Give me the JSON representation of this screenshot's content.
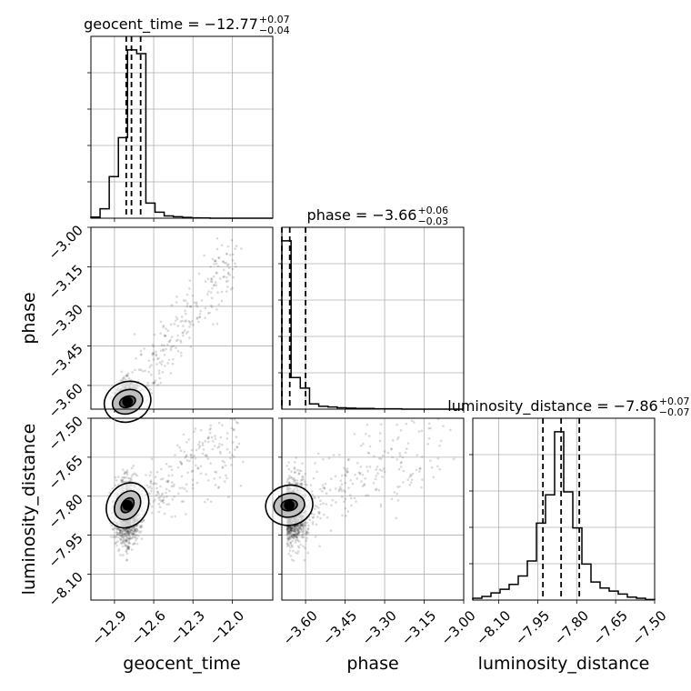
{
  "chart_data": {
    "type": "corner",
    "parameters": [
      "geocent_time",
      "phase",
      "luminosity_distance"
    ],
    "titles": [
      {
        "text": "geocent_time = −12.77",
        "sup": "+0.07",
        "sub": "−0.04"
      },
      {
        "text": "phase = −3.66",
        "sup": "+0.06",
        "sub": "−0.03"
      },
      {
        "text": "luminosity_distance = −7.86",
        "sup": "+0.07",
        "sub": "−0.07"
      }
    ],
    "axis_labels": [
      "geocent_time",
      "phase",
      "luminosity_distance"
    ],
    "ranges": [
      [
        -13.08,
        -11.69
      ],
      [
        -3.69,
        -3.0
      ],
      [
        -8.2,
        -7.5
      ]
    ],
    "ticks": [
      [
        -12.9,
        -12.6,
        -12.3,
        -12.0
      ],
      [
        -3.6,
        -3.45,
        -3.3,
        -3.15,
        -3.0
      ],
      [
        -8.1,
        -7.95,
        -7.8,
        -7.65,
        -7.5
      ]
    ],
    "tick_labels": [
      [
        "−12.9",
        "−12.6",
        "−12.3",
        "−12.0"
      ],
      [
        "−3.60",
        "−3.45",
        "−3.30",
        "−3.15",
        "−3.00"
      ],
      [
        "−8.10",
        "−7.95",
        "−7.80",
        "−7.65",
        "−7.50"
      ]
    ],
    "quantile_lines": [
      [
        -12.81,
        -12.77,
        -12.7
      ],
      [
        -3.69,
        -3.66,
        -3.6
      ],
      [
        -7.93,
        -7.86,
        -7.79
      ]
    ],
    "histograms": [
      {
        "bin_edges": [
          -13.08,
          -13.01,
          -12.94,
          -12.87,
          -12.8,
          -12.73,
          -12.66,
          -12.59,
          -12.52,
          -12.45,
          -12.38,
          -12.31,
          -12.24,
          -12.17,
          -12.1,
          -12.03,
          -11.96,
          -11.89,
          -11.82,
          -11.75,
          -11.69
        ],
        "counts": [
          0.3,
          2.5,
          11.0,
          21.3,
          44.5,
          43.5,
          4.0,
          1.6,
          0.6,
          0.4,
          0.2,
          0.1,
          0.05,
          0,
          0,
          0,
          0,
          0,
          0,
          0
        ]
      },
      {
        "bin_edges": [
          -3.69,
          -3.655,
          -3.62,
          -3.585,
          -3.55,
          -3.515,
          -3.48,
          -3.445,
          -3.41,
          -3.375,
          -3.34,
          -3.305,
          -3.27,
          -3.235,
          -3.2,
          -3.165,
          -3.13,
          -3.095,
          -3.06,
          -3.025,
          -3.0
        ],
        "counts": [
          4.8,
          0.9,
          0.6,
          0.15,
          0.08,
          0.06,
          0.04,
          0.03,
          0.02,
          0.02,
          0.01,
          0.01,
          0.01,
          0,
          0,
          0,
          0,
          0,
          0,
          0
        ]
      },
      {
        "bin_edges": [
          -8.2,
          -8.165,
          -8.13,
          -8.095,
          -8.06,
          -8.025,
          -7.99,
          -7.955,
          -7.92,
          -7.885,
          -7.85,
          -7.815,
          -7.78,
          -7.745,
          -7.71,
          -7.675,
          -7.64,
          -7.605,
          -7.57,
          -7.535,
          -7.5
        ],
        "counts": [
          0.3,
          0.6,
          1.2,
          1.8,
          2.6,
          4.0,
          6.5,
          12.8,
          17.5,
          28.0,
          18.0,
          12.0,
          6.0,
          3.0,
          2.0,
          1.5,
          1.0,
          0.5,
          0.3,
          0.1
        ]
      }
    ],
    "grid": true
  }
}
